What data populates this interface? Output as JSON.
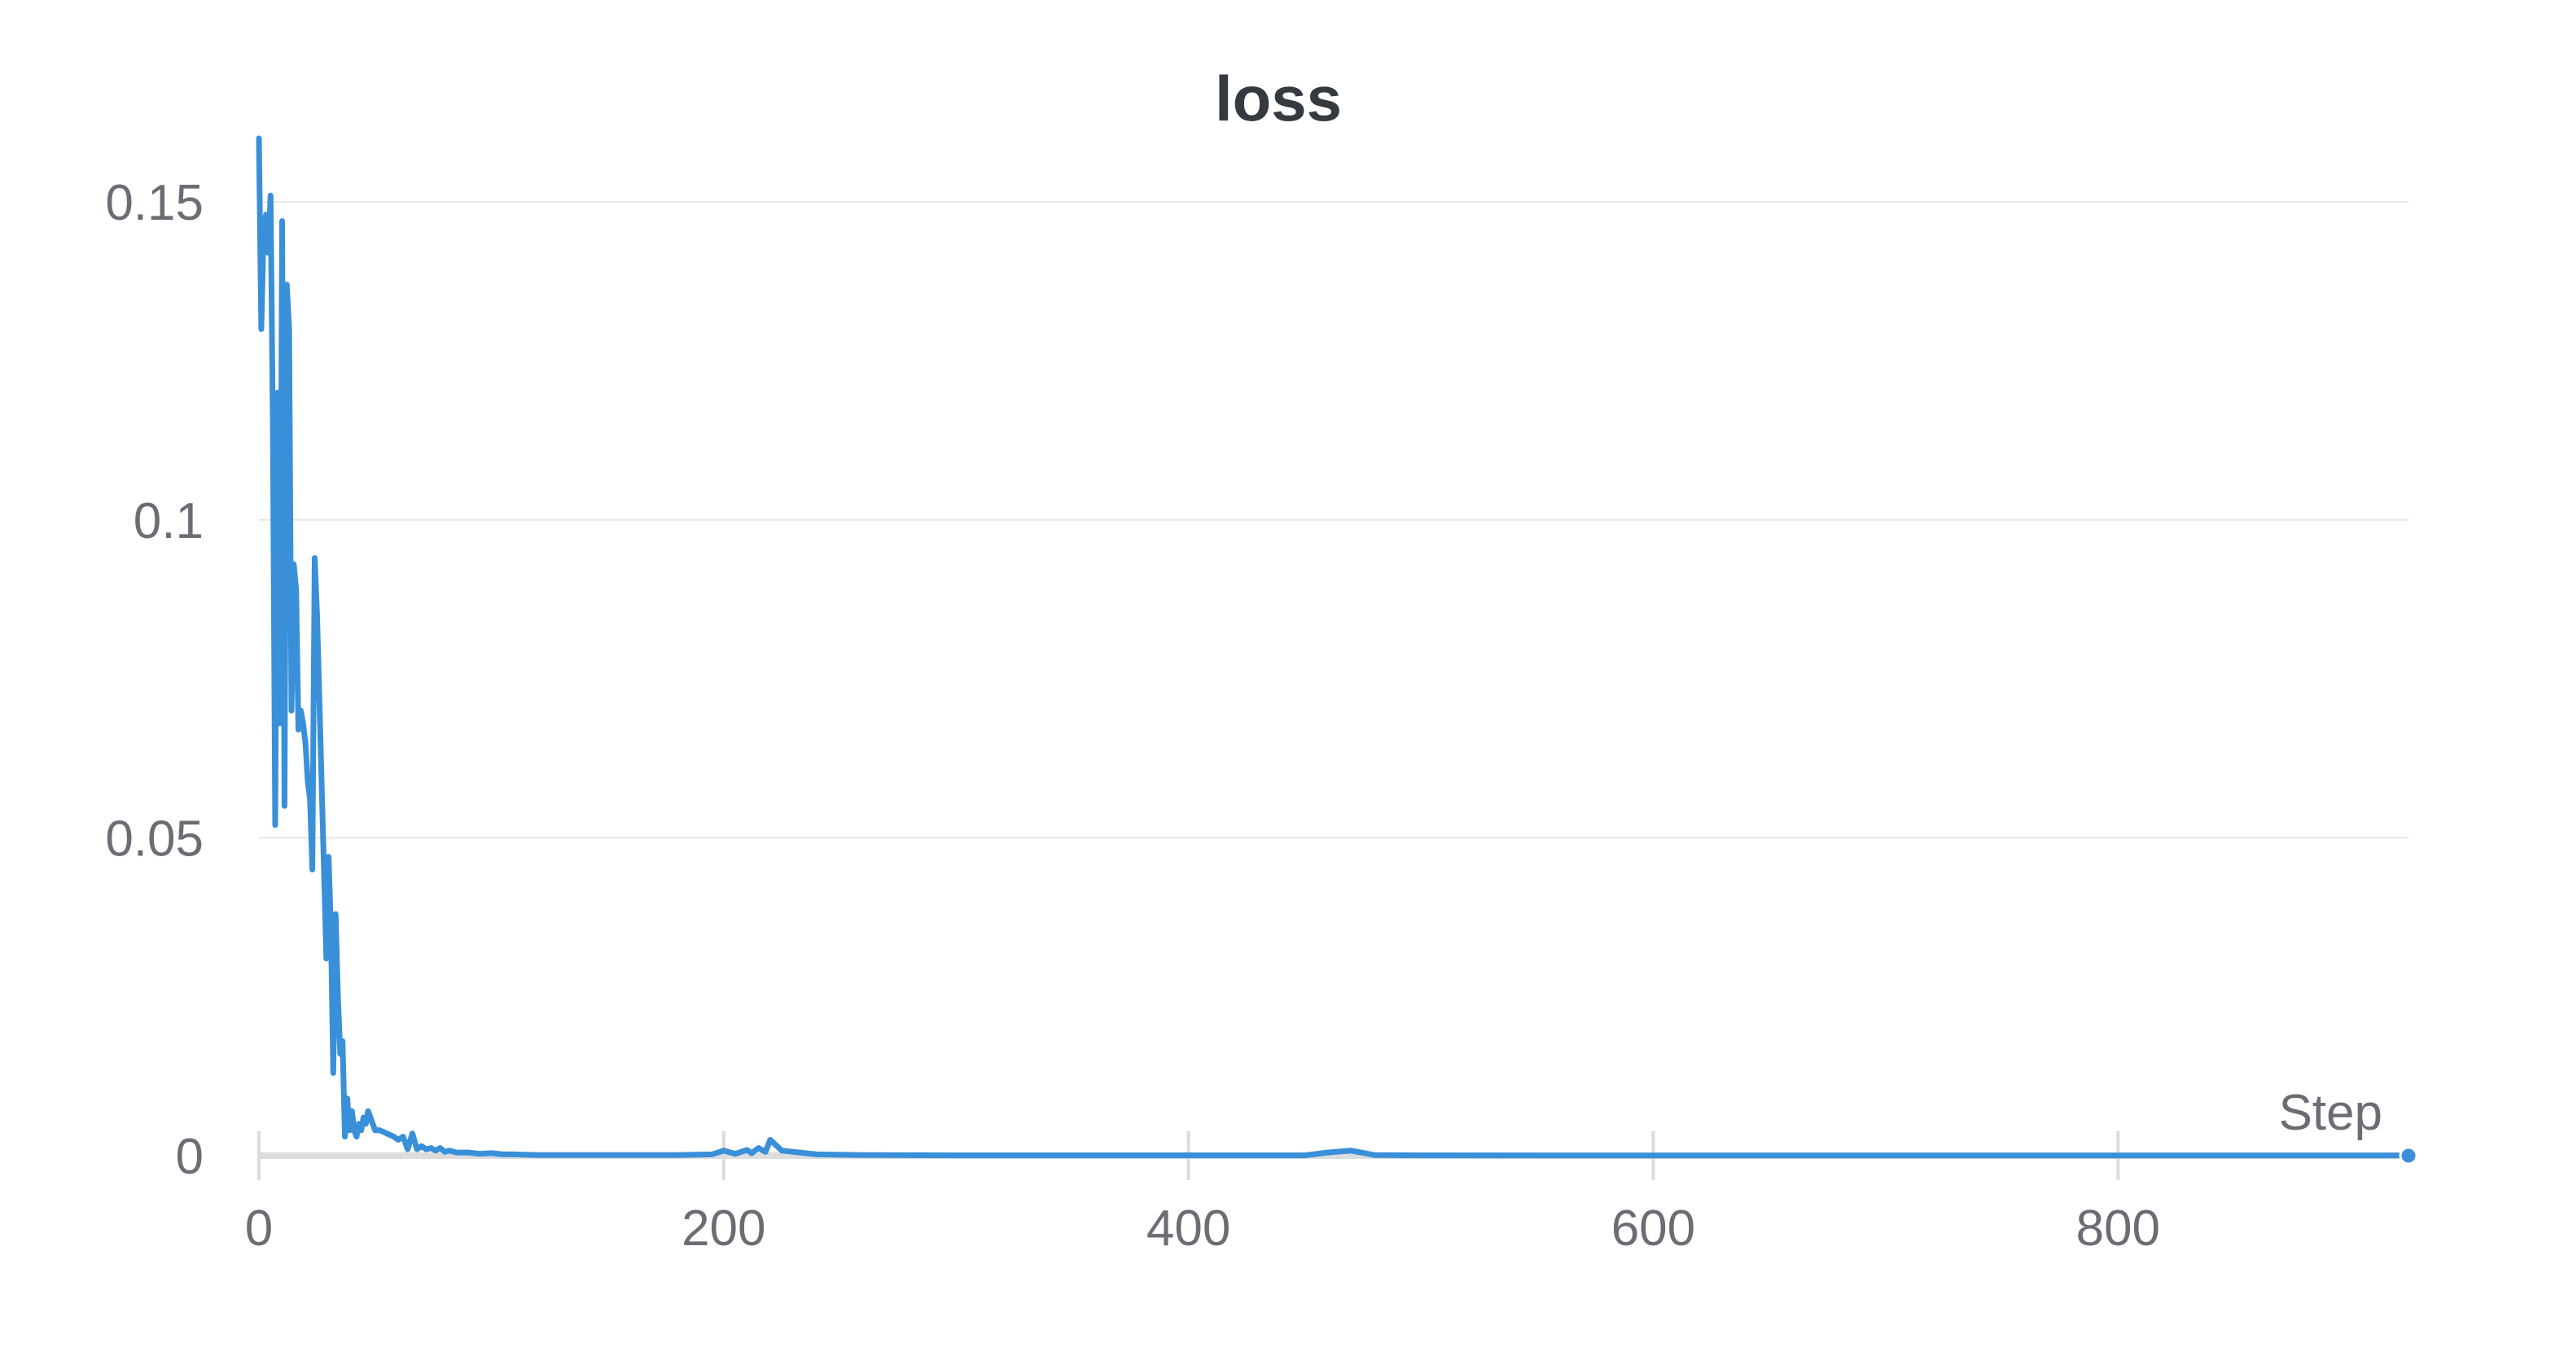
{
  "chart_data": {
    "type": "line",
    "title": "loss",
    "xlabel": "Step",
    "ylabel": "",
    "xlim": [
      0,
      925
    ],
    "ylim": [
      0,
      0.16
    ],
    "xticks": [
      0,
      200,
      400,
      600,
      800
    ],
    "xtick_labels": [
      "0",
      "200",
      "400",
      "600",
      "800"
    ],
    "yticks": [
      0,
      0.05,
      0.1,
      0.15
    ],
    "ytick_labels": [
      "0",
      "0.05",
      "0.1",
      "0.15"
    ],
    "grid": "horizontal",
    "colors": {
      "line": "#3a8fd9",
      "grid": "#e6e6e6",
      "axis": "#dcdcdc",
      "text": "#6b6d74",
      "title": "#343a40"
    },
    "series": [
      {
        "x": [
          0,
          1,
          2,
          3,
          4,
          5,
          6,
          7,
          8,
          9,
          10,
          11,
          12,
          13,
          14,
          15,
          16,
          17,
          18,
          19,
          20,
          21,
          22,
          23,
          24,
          25,
          26,
          27,
          28,
          29,
          30,
          31,
          32,
          33,
          34,
          35,
          36,
          37,
          38,
          39,
          40,
          41,
          42,
          43,
          44,
          45,
          46,
          47,
          48,
          49,
          50,
          52,
          55,
          58,
          60,
          62,
          64,
          66,
          68,
          70,
          72,
          74,
          76,
          78,
          80,
          82,
          85,
          90,
          95,
          100,
          105,
          110,
          120,
          140,
          160,
          180,
          195,
          200,
          205,
          210,
          212,
          215,
          218,
          220,
          225,
          230,
          235,
          240,
          260,
          300,
          350,
          400,
          450,
          460,
          470,
          480,
          500,
          600,
          700,
          800,
          925
        ],
        "y": [
          0.16,
          0.13,
          0.145,
          0.148,
          0.142,
          0.151,
          0.115,
          0.052,
          0.12,
          0.068,
          0.147,
          0.055,
          0.137,
          0.13,
          0.07,
          0.093,
          0.089,
          0.067,
          0.07,
          0.068,
          0.065,
          0.059,
          0.056,
          0.045,
          0.094,
          0.085,
          0.072,
          0.058,
          0.045,
          0.031,
          0.047,
          0.035,
          0.013,
          0.038,
          0.025,
          0.016,
          0.018,
          0.003,
          0.009,
          0.004,
          0.007,
          0.004,
          0.003,
          0.005,
          0.004,
          0.006,
          0.005,
          0.007,
          0.006,
          0.005,
          0.004,
          0.004,
          0.0035,
          0.003,
          0.0025,
          0.003,
          0.001,
          0.0035,
          0.001,
          0.0015,
          0.001,
          0.0012,
          0.0008,
          0.0012,
          0.0006,
          0.0008,
          0.0005,
          0.0005,
          0.0003,
          0.0004,
          0.0002,
          0.0002,
          0.0001,
          0.0001,
          0.0001,
          0.0001,
          0.0002,
          0.0008,
          0.0003,
          0.0009,
          0.0004,
          0.0012,
          0.0006,
          0.0025,
          0.0008,
          0.0006,
          0.0004,
          0.0002,
          0.0001,
          5e-05,
          5e-05,
          5e-05,
          5e-05,
          0.0005,
          0.0008,
          0.0001,
          5e-05,
          3e-05,
          3e-05,
          3e-05,
          3e-05
        ]
      }
    ]
  }
}
